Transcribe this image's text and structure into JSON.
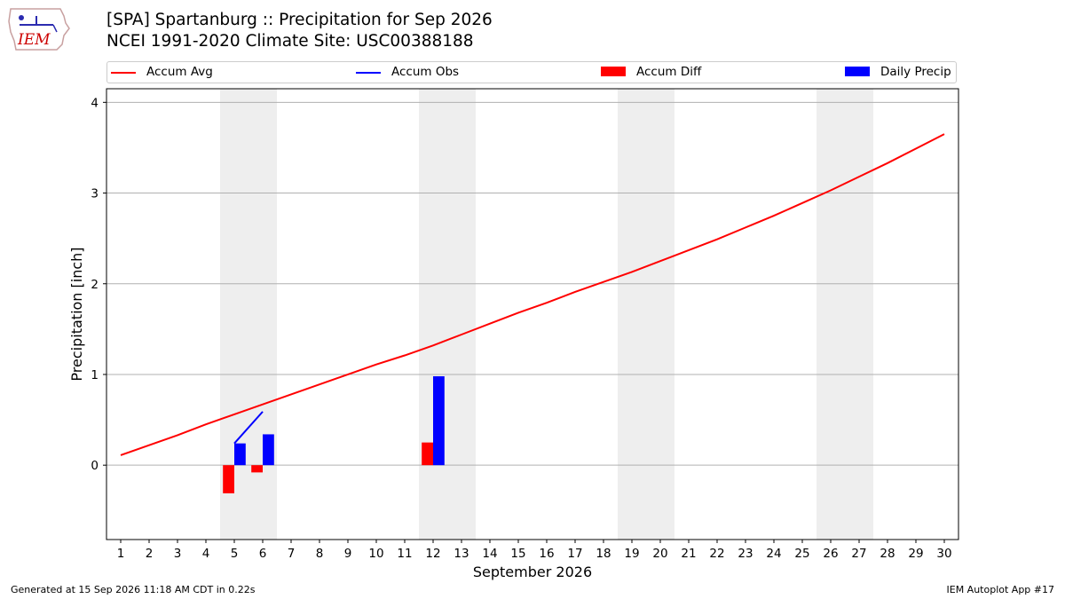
{
  "header": {
    "title_line1": "[SPA] Spartanburg :: Precipitation for Sep 2026",
    "title_line2": "NCEI 1991-2020 Climate Site: USC00388188",
    "logo_text": "IEM"
  },
  "footer": {
    "left": "Generated at 15 Sep 2026 11:18 AM CDT in 0.22s",
    "right": "IEM Autoplot App #17"
  },
  "chart_data": {
    "type": "bar",
    "xlabel": "September 2026",
    "ylabel": "Precipitation [inch]",
    "x": [
      1,
      2,
      3,
      4,
      5,
      6,
      7,
      8,
      9,
      10,
      11,
      12,
      13,
      14,
      15,
      16,
      17,
      18,
      19,
      20,
      21,
      22,
      23,
      24,
      25,
      26,
      27,
      28,
      29,
      30
    ],
    "ylim": [
      -0.82,
      4.15
    ],
    "yticks": [
      0,
      1,
      2,
      3,
      4
    ],
    "grid": "horizontal",
    "legend_position": "top",
    "weekend_shading": [
      [
        5,
        6
      ],
      [
        12,
        13
      ],
      [
        19,
        20
      ],
      [
        26,
        27
      ]
    ],
    "series": [
      {
        "name": "Accum Avg",
        "type": "line",
        "color": "#ff0000",
        "values": [
          0.11,
          0.22,
          0.33,
          0.45,
          0.56,
          0.67,
          0.78,
          0.89,
          1.0,
          1.11,
          1.21,
          1.32,
          1.44,
          1.56,
          1.68,
          1.79,
          1.91,
          2.02,
          2.13,
          2.25,
          2.37,
          2.49,
          2.62,
          2.75,
          2.89,
          3.03,
          3.18,
          3.33,
          3.49,
          3.65
        ]
      },
      {
        "name": "Accum Obs",
        "type": "line",
        "color": "#0000ff",
        "x": [
          5,
          6
        ],
        "values": [
          0.24,
          0.59
        ]
      },
      {
        "name": "Accum Diff",
        "type": "bar",
        "color": "#ff0000",
        "x": [
          5,
          6,
          12
        ],
        "values": [
          -0.31,
          -0.08,
          0.25
        ]
      },
      {
        "name": "Daily Precip",
        "type": "bar",
        "color": "#0000ff",
        "x": [
          5,
          6,
          12
        ],
        "values": [
          0.24,
          0.34,
          0.98
        ]
      }
    ]
  }
}
